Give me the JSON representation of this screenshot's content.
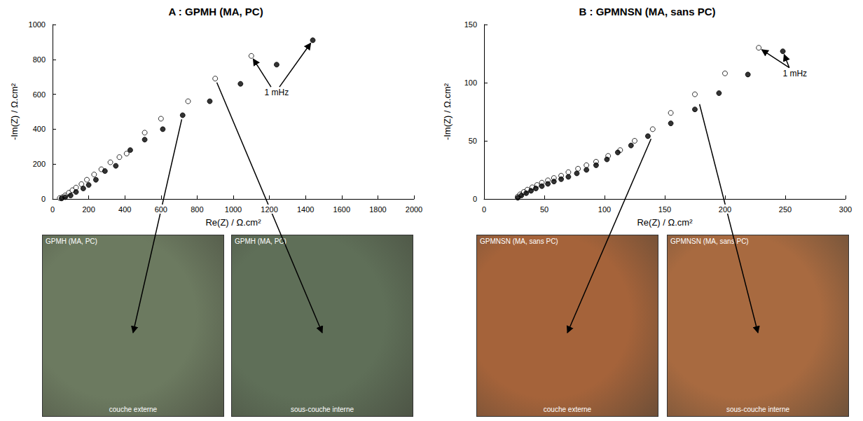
{
  "chart_data": [
    {
      "type": "scatter",
      "title": "A : GPMH (MA, PC)",
      "x_label": "Re(Z) / Ω.cm²",
      "y_label": "-Im(Z) / Ω.cm²",
      "xlim": [
        0,
        2000
      ],
      "xticks": [
        0,
        200,
        400,
        600,
        800,
        1000,
        1200,
        1400,
        1600,
        1800,
        2000
      ],
      "ylim": [
        0,
        1000
      ],
      "yticks": [
        0,
        200,
        400,
        600,
        800,
        1000
      ],
      "grid": false,
      "series": [
        {
          "marker": "open circle",
          "color": "#000000",
          "x": [
            40,
            55,
            70,
            90,
            110,
            130,
            160,
            190,
            230,
            270,
            320,
            370,
            410,
            510,
            600,
            750,
            900,
            1100
          ],
          "values": [
            5,
            10,
            20,
            35,
            50,
            65,
            85,
            110,
            140,
            170,
            210,
            240,
            260,
            380,
            460,
            560,
            690,
            820
          ]
        },
        {
          "marker": "filled circle",
          "color": "#000000",
          "x": [
            50,
            70,
            100,
            130,
            170,
            200,
            240,
            290,
            350,
            430,
            510,
            610,
            720,
            870,
            1040,
            1240,
            1440
          ],
          "values": [
            3,
            10,
            20,
            40,
            60,
            80,
            110,
            160,
            190,
            280,
            340,
            400,
            480,
            560,
            660,
            770,
            910
          ]
        }
      ],
      "annotations": [
        {
          "text": "1 mHz",
          "at": [
            1240,
            610
          ],
          "arrows_to": [
            [
              1100,
              820
            ],
            [
              1440,
              910
            ]
          ]
        }
      ],
      "photos": [
        {
          "header": "GPMH (MA, PC)",
          "caption": "couche externe",
          "color": "#6c7a60",
          "arrow_from": [
            720,
            480
          ]
        },
        {
          "header": "GPMH (MA, PC)",
          "caption": "sous-couche interne",
          "color": "#5f6f58",
          "arrow_from": [
            900,
            690
          ]
        }
      ]
    },
    {
      "type": "scatter",
      "title": "B : GPMNSN (MA, sans PC)",
      "x_label": "Re(Z) / Ω.cm²",
      "y_label": "-Im(Z) / Ω.cm²",
      "xlim": [
        0,
        300
      ],
      "xticks": [
        0,
        50,
        100,
        150,
        200,
        250,
        300
      ],
      "ylim": [
        0,
        150
      ],
      "yticks": [
        0,
        50,
        100,
        150
      ],
      "grid": false,
      "series": [
        {
          "marker": "open circle",
          "color": "#000000",
          "x": [
            28,
            30,
            33,
            36,
            40,
            44,
            48,
            53,
            58,
            64,
            70,
            78,
            85,
            93,
            103,
            113,
            125,
            140,
            155,
            175,
            200,
            228
          ],
          "values": [
            2,
            4,
            6,
            8,
            10,
            12,
            14,
            16,
            18,
            20,
            23,
            26,
            29,
            32,
            37,
            42,
            50,
            60,
            74,
            90,
            108,
            130
          ]
        },
        {
          "marker": "filled circle",
          "color": "#000000",
          "x": [
            28,
            31,
            35,
            39,
            43,
            48,
            53,
            58,
            64,
            70,
            77,
            85,
            93,
            102,
            111,
            122,
            136,
            155,
            175,
            195,
            219,
            248
          ],
          "values": [
            1,
            3,
            5,
            7,
            9,
            11,
            13,
            15,
            17,
            19,
            22,
            25,
            29,
            34,
            40,
            46,
            54,
            65,
            77,
            91,
            107,
            127
          ]
        }
      ],
      "annotations": [
        {
          "text": "1 mHz",
          "at": [
            258,
            108
          ],
          "arrows_to": [
            [
              228,
              130
            ],
            [
              248,
              127
            ]
          ]
        }
      ],
      "photos": [
        {
          "header": "GPMNSN (MA, sans PC)",
          "caption": "couche externe",
          "color": "#a5633a",
          "arrow_from": [
            140,
            55
          ]
        },
        {
          "header": "GPMNSN (MA, sans PC)",
          "caption": "sous-couche interne",
          "color": "#a86a40",
          "arrow_from": [
            178,
            85
          ]
        }
      ]
    }
  ]
}
